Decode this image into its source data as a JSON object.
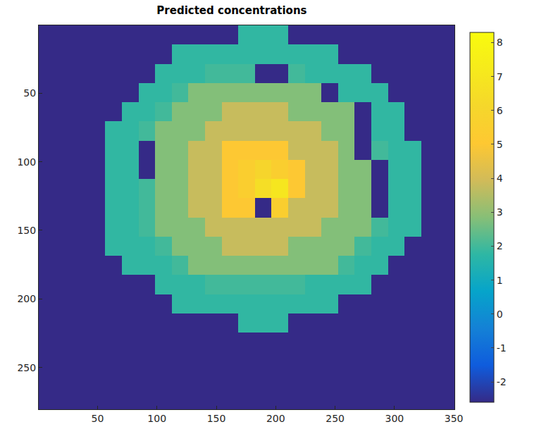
{
  "chart_data": {
    "type": "heatmap",
    "title": "Predicted concentrations",
    "x": [
      7.5,
      21.5,
      35.5,
      49.5,
      63.5,
      77.5,
      91.5,
      105.5,
      119.5,
      133.5,
      147.5,
      161.5,
      175.5,
      189.5,
      203.5,
      217.5,
      231.5,
      245.5,
      259.5,
      273.5,
      287.5,
      301.5,
      315.5,
      329.5,
      343.5
    ],
    "y": [
      7.5,
      21.5,
      35.5,
      49.5,
      63.5,
      77.5,
      91.5,
      105.5,
      119.5,
      133.5,
      147.5,
      161.5,
      175.5,
      189.5,
      203.5,
      217.5,
      231.5,
      245.5,
      259.5,
      273.5
    ],
    "z": [
      [
        -2.6,
        -2.6,
        -2.6,
        -2.6,
        -2.6,
        -2.6,
        -2.6,
        -2.6,
        -2.6,
        -2.6,
        -2.6,
        -2.6,
        1.8,
        1.8,
        1.8,
        -2.6,
        -2.6,
        -2.6,
        -2.6,
        -2.6,
        -2.6,
        -2.6,
        -2.6,
        -2.6,
        -2.6
      ],
      [
        -2.6,
        -2.6,
        -2.6,
        -2.6,
        -2.6,
        -2.6,
        -2.6,
        -2.6,
        1.8,
        1.8,
        1.8,
        1.8,
        1.8,
        1.8,
        1.8,
        1.8,
        1.8,
        1.8,
        -2.6,
        -2.6,
        -2.6,
        -2.6,
        -2.6,
        -2.6,
        -2.6
      ],
      [
        -2.6,
        -2.6,
        -2.6,
        -2.6,
        -2.6,
        -2.6,
        -2.6,
        1.8,
        1.8,
        1.8,
        2.0,
        2.0,
        2.0,
        -2.6,
        -2.6,
        2.0,
        1.8,
        1.8,
        1.8,
        1.8,
        -2.6,
        -2.6,
        -2.6,
        -2.6,
        -2.6
      ],
      [
        -2.6,
        -2.6,
        -2.6,
        -2.6,
        -2.6,
        -2.6,
        1.8,
        1.8,
        2.0,
        2.8,
        2.8,
        2.8,
        2.8,
        2.8,
        2.8,
        2.8,
        2.8,
        -2.6,
        1.8,
        1.8,
        1.8,
        -2.6,
        -2.6,
        -2.6,
        -2.6
      ],
      [
        -2.6,
        -2.6,
        -2.6,
        -2.6,
        -2.6,
        1.8,
        1.8,
        2.0,
        2.8,
        2.8,
        2.8,
        3.8,
        3.8,
        3.8,
        3.8,
        2.8,
        2.8,
        2.8,
        2.8,
        -2.6,
        1.8,
        1.8,
        -2.6,
        -2.6,
        -2.6
      ],
      [
        -2.6,
        -2.6,
        -2.6,
        -2.6,
        1.8,
        1.8,
        2.0,
        2.8,
        2.8,
        2.8,
        3.8,
        3.8,
        3.8,
        3.8,
        3.8,
        3.8,
        3.8,
        2.8,
        2.8,
        -2.6,
        1.8,
        1.8,
        -2.6,
        -2.6,
        -2.6
      ],
      [
        -2.6,
        -2.6,
        -2.6,
        -2.6,
        1.8,
        1.8,
        -2.6,
        2.8,
        2.8,
        3.8,
        3.8,
        5.0,
        5.0,
        5.0,
        5.0,
        3.8,
        3.8,
        3.8,
        2.8,
        -2.6,
        2.0,
        1.8,
        1.8,
        -2.6,
        -2.6
      ],
      [
        -2.6,
        -2.6,
        -2.6,
        -2.6,
        1.8,
        1.8,
        -2.6,
        2.8,
        2.8,
        3.8,
        3.8,
        5.0,
        5.5,
        6.0,
        5.5,
        5.0,
        3.8,
        3.8,
        2.8,
        2.8,
        -2.6,
        1.8,
        1.8,
        -2.6,
        -2.6
      ],
      [
        -2.6,
        -2.6,
        -2.6,
        -2.6,
        1.8,
        1.8,
        2.0,
        2.8,
        2.8,
        3.8,
        3.8,
        5.0,
        5.5,
        6.5,
        7.0,
        5.0,
        3.8,
        3.8,
        2.8,
        2.8,
        -2.6,
        1.8,
        1.8,
        -2.6,
        -2.6
      ],
      [
        -2.6,
        -2.6,
        -2.6,
        -2.6,
        1.8,
        1.8,
        2.0,
        2.8,
        2.8,
        3.8,
        3.8,
        5.0,
        5.0,
        -2.6,
        5.5,
        3.8,
        3.8,
        3.8,
        2.8,
        2.8,
        -2.6,
        1.8,
        1.8,
        -2.6,
        -2.6
      ],
      [
        -2.6,
        -2.6,
        -2.6,
        -2.6,
        1.8,
        1.8,
        2.0,
        2.8,
        2.8,
        2.8,
        3.8,
        3.8,
        3.8,
        3.8,
        3.8,
        3.8,
        3.8,
        2.8,
        2.8,
        2.8,
        2.0,
        1.8,
        1.8,
        -2.6,
        -2.6
      ],
      [
        -2.6,
        -2.6,
        -2.6,
        -2.6,
        1.8,
        1.8,
        1.8,
        2.0,
        2.8,
        2.8,
        2.8,
        3.8,
        3.8,
        3.8,
        3.8,
        2.8,
        2.8,
        2.8,
        2.8,
        2.0,
        1.8,
        1.8,
        -2.6,
        -2.6,
        -2.6
      ],
      [
        -2.6,
        -2.6,
        -2.6,
        -2.6,
        -2.6,
        1.8,
        1.8,
        1.8,
        2.0,
        2.8,
        2.8,
        2.8,
        2.8,
        2.8,
        2.8,
        2.8,
        2.8,
        2.8,
        2.0,
        1.8,
        1.8,
        -2.6,
        -2.6,
        -2.6,
        -2.6
      ],
      [
        -2.6,
        -2.6,
        -2.6,
        -2.6,
        -2.6,
        -2.6,
        -2.6,
        1.8,
        1.8,
        1.8,
        2.0,
        2.0,
        2.0,
        2.0,
        2.0,
        2.0,
        1.8,
        1.8,
        1.8,
        1.8,
        -2.6,
        -2.6,
        -2.6,
        -2.6,
        -2.6
      ],
      [
        -2.6,
        -2.6,
        -2.6,
        -2.6,
        -2.6,
        -2.6,
        -2.6,
        -2.6,
        1.8,
        1.8,
        1.8,
        1.8,
        1.8,
        1.8,
        1.8,
        1.8,
        1.8,
        1.8,
        -2.6,
        -2.6,
        -2.6,
        -2.6,
        -2.6,
        -2.6,
        -2.6
      ],
      [
        -2.6,
        -2.6,
        -2.6,
        -2.6,
        -2.6,
        -2.6,
        -2.6,
        -2.6,
        -2.6,
        -2.6,
        -2.6,
        -2.6,
        1.8,
        1.8,
        1.8,
        -2.6,
        -2.6,
        -2.6,
        -2.6,
        -2.6,
        -2.6,
        -2.6,
        -2.6,
        -2.6,
        -2.6
      ],
      [
        -2.6,
        -2.6,
        -2.6,
        -2.6,
        -2.6,
        -2.6,
        -2.6,
        -2.6,
        -2.6,
        -2.6,
        -2.6,
        -2.6,
        -2.6,
        -2.6,
        -2.6,
        -2.6,
        -2.6,
        -2.6,
        -2.6,
        -2.6,
        -2.6,
        -2.6,
        -2.6,
        -2.6,
        -2.6
      ],
      [
        -2.6,
        -2.6,
        -2.6,
        -2.6,
        -2.6,
        -2.6,
        -2.6,
        -2.6,
        -2.6,
        -2.6,
        -2.6,
        -2.6,
        -2.6,
        -2.6,
        -2.6,
        -2.6,
        -2.6,
        -2.6,
        -2.6,
        -2.6,
        -2.6,
        -2.6,
        -2.6,
        -2.6,
        -2.6
      ],
      [
        -2.6,
        -2.6,
        -2.6,
        -2.6,
        -2.6,
        -2.6,
        -2.6,
        -2.6,
        -2.6,
        -2.6,
        -2.6,
        -2.6,
        -2.6,
        -2.6,
        -2.6,
        -2.6,
        -2.6,
        -2.6,
        -2.6,
        -2.6,
        -2.6,
        -2.6,
        -2.6,
        -2.6,
        -2.6
      ],
      [
        -2.6,
        -2.6,
        -2.6,
        -2.6,
        -2.6,
        -2.6,
        -2.6,
        -2.6,
        -2.6,
        -2.6,
        -2.6,
        -2.6,
        -2.6,
        -2.6,
        -2.6,
        -2.6,
        -2.6,
        -2.6,
        -2.6,
        -2.6,
        -2.6,
        -2.6,
        -2.6,
        -2.6,
        -2.6
      ]
    ],
    "xlim": [
      0.5,
      350.5
    ],
    "ylim": [
      0.5,
      280.5
    ],
    "xticks": [
      50,
      100,
      150,
      200,
      250,
      300,
      350
    ],
    "yticks": [
      50,
      100,
      150,
      200,
      250
    ],
    "zlim": [
      -2.6,
      8.3
    ],
    "zticks": [
      -2,
      -1,
      0,
      1,
      2,
      3,
      4,
      5,
      6,
      7,
      8
    ],
    "grid": false
  }
}
